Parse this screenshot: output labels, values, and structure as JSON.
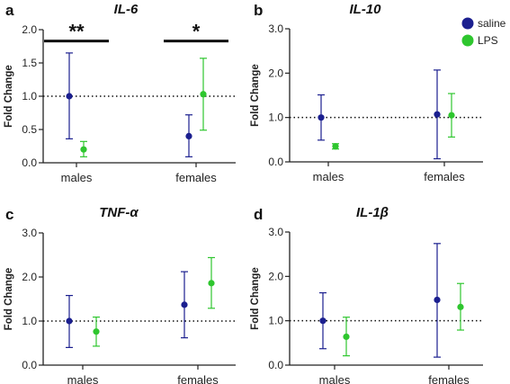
{
  "colors": {
    "saline": "#1b1f8f",
    "lps": "#2ec62e",
    "axis": "#222222"
  },
  "legend": {
    "placement": "top-right of panel b",
    "items": [
      "saline",
      "LPS"
    ]
  },
  "chart_data": [
    {
      "type": "scatter",
      "panel": "a",
      "title": "IL-6",
      "ylabel": "Fold Change",
      "categories": [
        "males",
        "females"
      ],
      "ylim": [
        0,
        2.0
      ],
      "yticks": [
        "0.0",
        "0.5",
        "1.0",
        "1.5",
        "2.0"
      ],
      "tick_values": [
        0,
        0.5,
        1.0,
        1.5,
        2.0
      ],
      "reference_line": 1.0,
      "series": [
        {
          "name": "saline",
          "values": [
            1.0,
            0.4
          ],
          "lower": [
            0.36,
            0.09
          ],
          "upper": [
            1.65,
            0.72
          ]
        },
        {
          "name": "LPS",
          "values": [
            0.2,
            1.03
          ],
          "lower": [
            0.09,
            0.49
          ],
          "upper": [
            0.32,
            1.57
          ]
        }
      ],
      "annotations": [
        {
          "text": "**",
          "category": "males"
        },
        {
          "text": "*",
          "category": "females"
        }
      ]
    },
    {
      "type": "scatter",
      "panel": "b",
      "title": "IL-10",
      "ylabel": "Fold Change",
      "categories": [
        "males",
        "females"
      ],
      "ylim": [
        0,
        3.0
      ],
      "yticks": [
        "0.0",
        "1.0",
        "2.0",
        "3.0"
      ],
      "tick_values": [
        0,
        1.0,
        2.0,
        3.0
      ],
      "reference_line": 1.0,
      "series": [
        {
          "name": "saline",
          "values": [
            1.0,
            1.07
          ],
          "lower": [
            0.49,
            0.07
          ],
          "upper": [
            1.51,
            2.07
          ]
        },
        {
          "name": "LPS",
          "values": [
            0.35,
            1.05
          ],
          "lower": [
            0.29,
            0.56
          ],
          "upper": [
            0.41,
            1.54
          ]
        }
      ],
      "annotations": []
    },
    {
      "type": "scatter",
      "panel": "c",
      "title": "TNF-α",
      "ylabel": "Fold Change",
      "categories": [
        "males",
        "females"
      ],
      "ylim": [
        0,
        3.0
      ],
      "yticks": [
        "0.0",
        "1.0",
        "2.0",
        "3.0"
      ],
      "tick_values": [
        0,
        1.0,
        2.0,
        3.0
      ],
      "reference_line": 1.0,
      "series": [
        {
          "name": "saline",
          "values": [
            1.0,
            1.37
          ],
          "lower": [
            0.4,
            0.62
          ],
          "upper": [
            1.58,
            2.12
          ]
        },
        {
          "name": "LPS",
          "values": [
            0.76,
            1.86
          ],
          "lower": [
            0.43,
            1.29
          ],
          "upper": [
            1.09,
            2.44
          ]
        }
      ],
      "annotations": []
    },
    {
      "type": "scatter",
      "panel": "d",
      "title": "IL-1β",
      "ylabel": "Fold Change",
      "categories": [
        "males",
        "females"
      ],
      "ylim": [
        0,
        3.0
      ],
      "yticks": [
        "0.0",
        "1.0",
        "2.0",
        "3.0"
      ],
      "tick_values": [
        0,
        1.0,
        2.0,
        3.0
      ],
      "reference_line": 1.0,
      "series": [
        {
          "name": "saline",
          "values": [
            1.0,
            1.47
          ],
          "lower": [
            0.37,
            0.18
          ],
          "upper": [
            1.63,
            2.74
          ]
        },
        {
          "name": "LPS",
          "values": [
            0.64,
            1.31
          ],
          "lower": [
            0.21,
            0.79
          ],
          "upper": [
            1.08,
            1.84
          ]
        }
      ],
      "annotations": []
    }
  ]
}
